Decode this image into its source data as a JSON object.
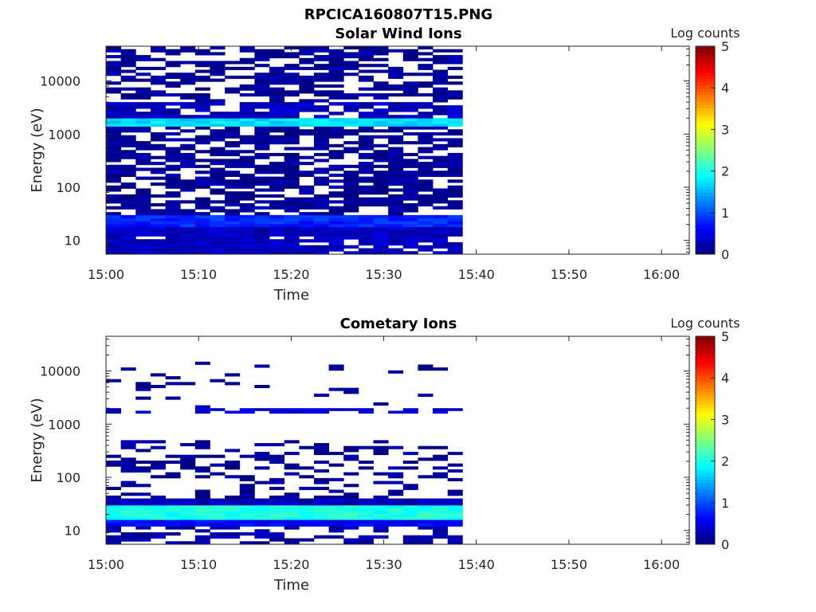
{
  "figure_title": "RPCICA160807T15.PNG",
  "chart_data": [
    {
      "type": "heatmap",
      "title": "Solar Wind Ions",
      "xlabel": "Time",
      "ylabel": "Energy (eV)",
      "x_tick_labels": [
        "15:00",
        "15:10",
        "15:20",
        "15:30",
        "15:40",
        "15:50",
        "16:00"
      ],
      "x_range_minutes_after_15_00": [
        0,
        63
      ],
      "y_scale": "log",
      "y_range_eV": [
        5.5,
        45000
      ],
      "y_tick_labels": [
        "10",
        "100",
        "1000",
        "10000"
      ],
      "colorbar": {
        "label": "Log counts",
        "ticks": [
          "0",
          "1",
          "2",
          "3",
          "4",
          "5"
        ],
        "range": [
          0,
          5
        ],
        "colormap": "jet"
      },
      "data_extent_minutes": [
        0,
        38.5
      ],
      "time_bins": 24,
      "energy_bands": [
        {
          "energy_min_eV": 5.5,
          "energy_max_eV": 12,
          "log_counts": 0.3,
          "coverage": 0.8
        },
        {
          "energy_min_eV": 12,
          "energy_max_eV": 18,
          "log_counts": 0.3,
          "coverage": 1.0
        },
        {
          "energy_min_eV": 18,
          "energy_max_eV": 30,
          "log_counts": 0.8,
          "coverage": 1.0
        },
        {
          "energy_min_eV": 30,
          "energy_max_eV": 1400,
          "log_counts": 0.1,
          "coverage": 0.65
        },
        {
          "energy_min_eV": 1400,
          "energy_max_eV": 2000,
          "log_counts": 1.7,
          "coverage": 1.0
        },
        {
          "energy_min_eV": 2000,
          "energy_max_eV": 4000,
          "log_counts": 0.3,
          "coverage": 0.75
        },
        {
          "energy_min_eV": 4000,
          "energy_max_eV": 45000,
          "log_counts": 0.1,
          "coverage": 0.6
        }
      ]
    },
    {
      "type": "heatmap",
      "title": "Cometary Ions",
      "xlabel": "Time",
      "ylabel": "Energy (eV)",
      "x_tick_labels": [
        "15:00",
        "15:10",
        "15:20",
        "15:30",
        "15:40",
        "15:50",
        "16:00"
      ],
      "x_range_minutes_after_15_00": [
        0,
        63
      ],
      "y_scale": "log",
      "y_range_eV": [
        5.5,
        45000
      ],
      "y_tick_labels": [
        "10",
        "100",
        "1000",
        "10000"
      ],
      "colorbar": {
        "label": "Log counts",
        "ticks": [
          "0",
          "1",
          "2",
          "3",
          "4",
          "5"
        ],
        "range": [
          0,
          5
        ],
        "colormap": "jet"
      },
      "data_extent_minutes": [
        0,
        38.5
      ],
      "time_bins": 24,
      "energy_bands": [
        {
          "energy_min_eV": 5.5,
          "energy_max_eV": 12,
          "log_counts": 0.2,
          "coverage": 0.55
        },
        {
          "energy_min_eV": 12,
          "energy_max_eV": 16,
          "log_counts": 0.6,
          "coverage": 1.0
        },
        {
          "energy_min_eV": 16,
          "energy_max_eV": 30,
          "log_counts": 2.0,
          "coverage": 1.0
        },
        {
          "energy_min_eV": 30,
          "energy_max_eV": 40,
          "log_counts": 0.3,
          "coverage": 1.0
        },
        {
          "energy_min_eV": 40,
          "energy_max_eV": 500,
          "log_counts": 0.1,
          "coverage": 0.3
        },
        {
          "energy_min_eV": 1600,
          "energy_max_eV": 2000,
          "log_counts": 0.4,
          "coverage": 0.55
        },
        {
          "energy_min_eV": 2000,
          "energy_max_eV": 15000,
          "log_counts": 0.1,
          "coverage": 0.1
        }
      ]
    }
  ]
}
